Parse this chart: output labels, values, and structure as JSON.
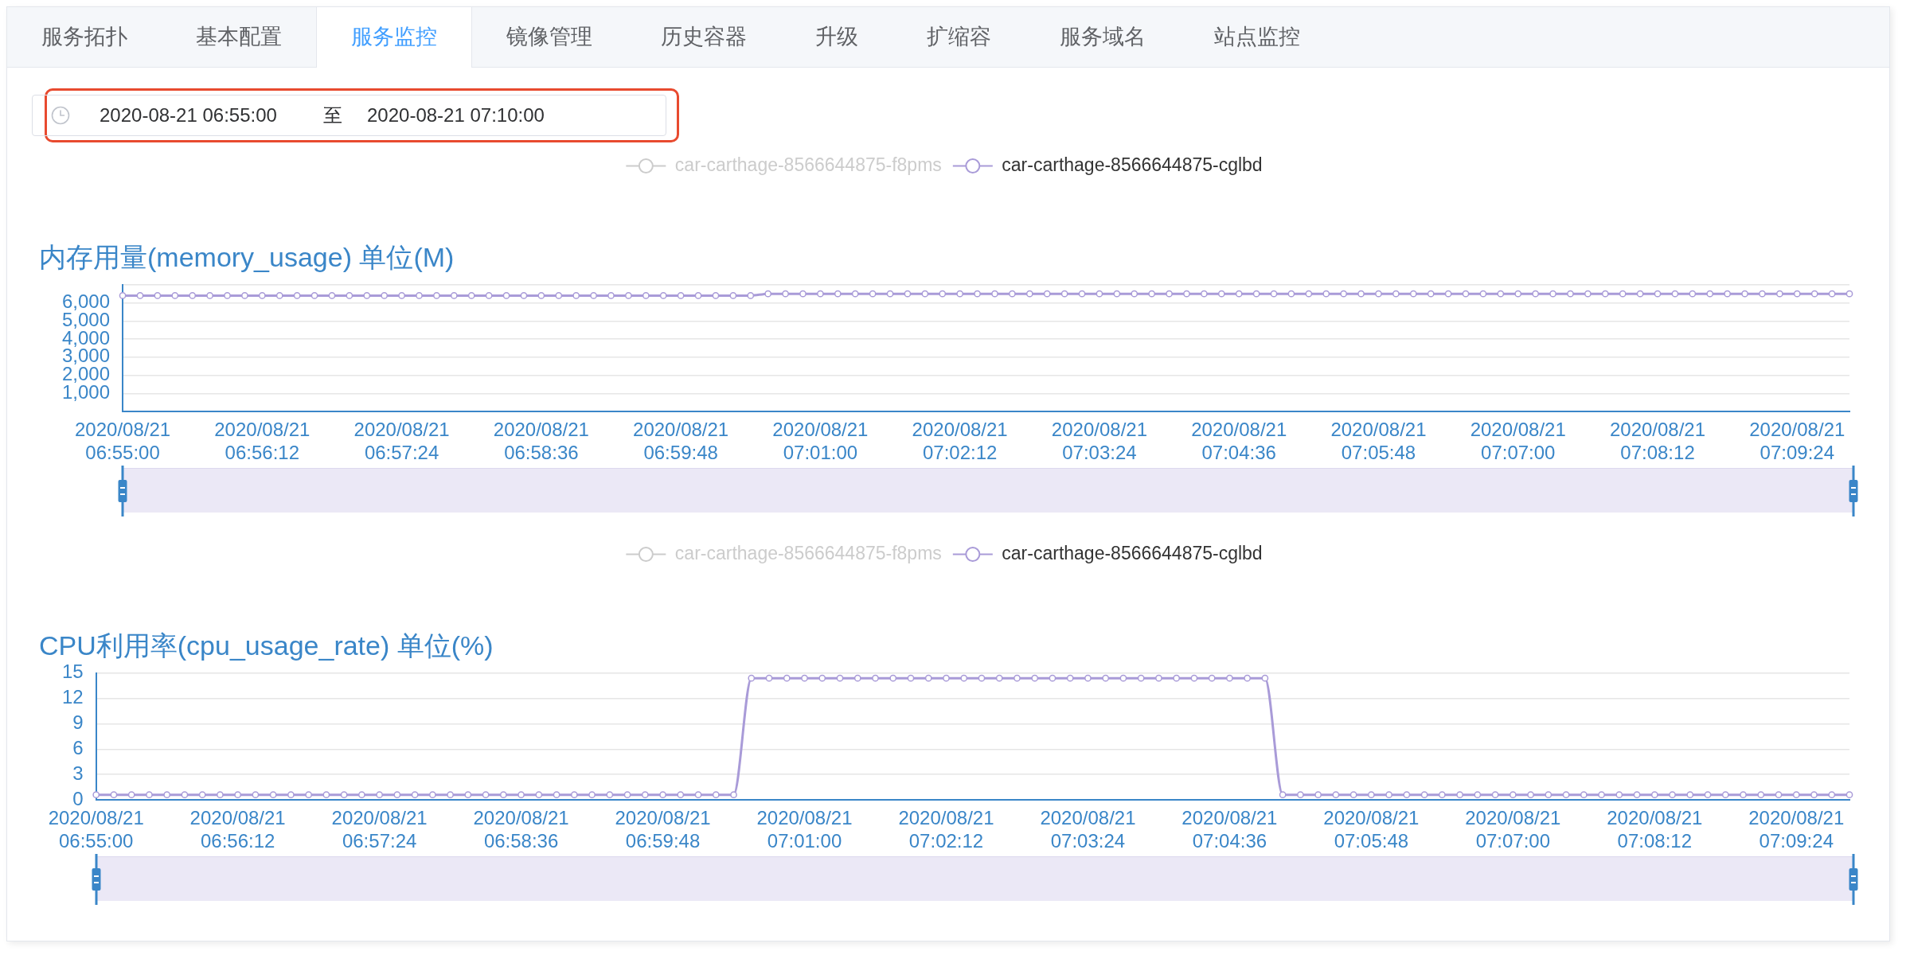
{
  "chart_data": [
    {
      "type": "other",
      "annotations": [
        "服务拓扑",
        "基本配置",
        "服务监控",
        "镜像管理",
        "历史容器",
        "升级",
        "扩缩容",
        "服务域名",
        "站点监控"
      ]
    },
    {
      "type": "other",
      "annotations": [
        "2020-08-21 06:55:00",
        "至",
        "2020-08-21 07:10:00"
      ]
    },
    {
      "type": "line",
      "title": "内存用量(memory_usage) 单位(M)",
      "categories": [
        "2020/08/21 06:55:00",
        null,
        null,
        null,
        null,
        null,
        null,
        null,
        "2020/08/21 06:56:12",
        null,
        null,
        null,
        null,
        null,
        null,
        null,
        "2020/08/21 06:57:24",
        null,
        null,
        null,
        null,
        null,
        null,
        null,
        "2020/08/21 06:58:36",
        null,
        null,
        null,
        null,
        null,
        null,
        null,
        "2020/08/21 06:59:48",
        null,
        null,
        null,
        null,
        null,
        null,
        null,
        "2020/08/21 07:01:00",
        null,
        null,
        null,
        null,
        null,
        null,
        null,
        "2020/08/21 07:02:12",
        null,
        null,
        null,
        null,
        null,
        null,
        null,
        "2020/08/21 07:03:24",
        null,
        null,
        null,
        null,
        null,
        null,
        null,
        "2020/08/21 07:04:36",
        null,
        null,
        null,
        null,
        null,
        null,
        null,
        "2020/08/21 07:05:48",
        null,
        null,
        null,
        null,
        null,
        null,
        null,
        "2020/08/21 07:07:00",
        null,
        null,
        null,
        null,
        null,
        null,
        null,
        "2020/08/21 07:08:12",
        null,
        null,
        null,
        null,
        null,
        null,
        null,
        "2020/08/21 07:09:24",
        null,
        null,
        null
      ],
      "series": [
        {
          "name": "car-carthage-8566644875-f8pms",
          "color": "#cccccc",
          "values": [
            null,
            null,
            null,
            null,
            null,
            null,
            null,
            null,
            null,
            null,
            null,
            null,
            null,
            null,
            null,
            null,
            null,
            null,
            null,
            null,
            null,
            null,
            null,
            null,
            null,
            null,
            null,
            null,
            null,
            null,
            null,
            null,
            null,
            null,
            null,
            null,
            null,
            null,
            null,
            null,
            null,
            null,
            null,
            null,
            null,
            null,
            null,
            null,
            null,
            null,
            null,
            null,
            null,
            null,
            null,
            null,
            null,
            null,
            null,
            null,
            null,
            null,
            null,
            null,
            null,
            null,
            null,
            null,
            null,
            null,
            null,
            null,
            null,
            null,
            null,
            null,
            null,
            null,
            null,
            null,
            null,
            null,
            null,
            null,
            null,
            null,
            null,
            null,
            null,
            null,
            null,
            null,
            null,
            null,
            null,
            null,
            null,
            null,
            null,
            null
          ]
        },
        {
          "name": "car-carthage-8566644875-cglbd",
          "color": "#a99bd8",
          "values": [
            6400,
            6400,
            6400,
            6400,
            6400,
            6400,
            6400,
            6400,
            6400,
            6400,
            6400,
            6400,
            6400,
            6400,
            6400,
            6400,
            6400,
            6400,
            6400,
            6400,
            6400,
            6400,
            6400,
            6400,
            6400,
            6400,
            6400,
            6400,
            6400,
            6400,
            6400,
            6400,
            6400,
            6400,
            6400,
            6400,
            6400,
            6500,
            6500,
            6500,
            6500,
            6500,
            6500,
            6500,
            6500,
            6500,
            6500,
            6500,
            6500,
            6500,
            6500,
            6500,
            6500,
            6500,
            6500,
            6500,
            6500,
            6500,
            6500,
            6500,
            6500,
            6500,
            6500,
            6500,
            6500,
            6500,
            6500,
            6500,
            6500,
            6500,
            6500,
            6500,
            6500,
            6500,
            6500,
            6500,
            6500,
            6500,
            6500,
            6500,
            6500,
            6500,
            6500,
            6500,
            6500,
            6500,
            6500,
            6500,
            6500,
            6500,
            6500,
            6500,
            6500,
            6500,
            6500,
            6500,
            6500,
            6500,
            6500,
            6500
          ]
        }
      ],
      "ylim": [
        0,
        7000
      ],
      "yticks": [
        {
          "value": 0,
          "label": null
        },
        {
          "value": 1000,
          "label": "1,000"
        },
        {
          "value": 2000,
          "label": "2,000"
        },
        {
          "value": 3000,
          "label": "3,000"
        },
        {
          "value": 4000,
          "label": "4,000"
        },
        {
          "value": 5000,
          "label": "5,000"
        },
        {
          "value": 6000,
          "label": "6,000"
        },
        {
          "value": 7000,
          "label": null
        }
      ],
      "grid": "y",
      "legend": "top",
      "marker": "circle"
    },
    {
      "type": "line",
      "title": "CPU利用率(cpu_usage_rate) 单位(%)",
      "categories": [
        "2020/08/21 06:55:00",
        null,
        null,
        null,
        null,
        null,
        null,
        null,
        "2020/08/21 06:56:12",
        null,
        null,
        null,
        null,
        null,
        null,
        null,
        "2020/08/21 06:57:24",
        null,
        null,
        null,
        null,
        null,
        null,
        null,
        "2020/08/21 06:58:36",
        null,
        null,
        null,
        null,
        null,
        null,
        null,
        "2020/08/21 06:59:48",
        null,
        null,
        null,
        null,
        null,
        null,
        null,
        "2020/08/21 07:01:00",
        null,
        null,
        null,
        null,
        null,
        null,
        null,
        "2020/08/21 07:02:12",
        null,
        null,
        null,
        null,
        null,
        null,
        null,
        "2020/08/21 07:03:24",
        null,
        null,
        null,
        null,
        null,
        null,
        null,
        "2020/08/21 07:04:36",
        null,
        null,
        null,
        null,
        null,
        null,
        null,
        "2020/08/21 07:05:48",
        null,
        null,
        null,
        null,
        null,
        null,
        null,
        "2020/08/21 07:07:00",
        null,
        null,
        null,
        null,
        null,
        null,
        null,
        "2020/08/21 07:08:12",
        null,
        null,
        null,
        null,
        null,
        null,
        null,
        "2020/08/21 07:09:24",
        null,
        null,
        null
      ],
      "series": [
        {
          "name": "car-carthage-8566644875-f8pms",
          "color": "#cccccc",
          "values": [
            null,
            null,
            null,
            null,
            null,
            null,
            null,
            null,
            null,
            null,
            null,
            null,
            null,
            null,
            null,
            null,
            null,
            null,
            null,
            null,
            null,
            null,
            null,
            null,
            null,
            null,
            null,
            null,
            null,
            null,
            null,
            null,
            null,
            null,
            null,
            null,
            null,
            null,
            null,
            null,
            null,
            null,
            null,
            null,
            null,
            null,
            null,
            null,
            null,
            null,
            null,
            null,
            null,
            null,
            null,
            null,
            null,
            null,
            null,
            null,
            null,
            null,
            null,
            null,
            null,
            null,
            null,
            null,
            null,
            null,
            null,
            null,
            null,
            null,
            null,
            null,
            null,
            null,
            null,
            null,
            null,
            null,
            null,
            null,
            null,
            null,
            null,
            null,
            null,
            null,
            null,
            null,
            null,
            null,
            null,
            null,
            null,
            null,
            null,
            null
          ]
        },
        {
          "name": "car-carthage-8566644875-cglbd",
          "color": "#a99bd8",
          "values": [
            0.6,
            0.6,
            0.6,
            0.6,
            0.6,
            0.6,
            0.6,
            0.6,
            0.6,
            0.6,
            0.6,
            0.6,
            0.6,
            0.6,
            0.6,
            0.6,
            0.6,
            0.6,
            0.6,
            0.6,
            0.6,
            0.6,
            0.6,
            0.6,
            0.6,
            0.6,
            0.6,
            0.6,
            0.6,
            0.6,
            0.6,
            0.6,
            0.6,
            0.6,
            0.6,
            0.6,
            0.6,
            14.4,
            14.4,
            14.4,
            14.4,
            14.4,
            14.4,
            14.4,
            14.4,
            14.4,
            14.4,
            14.4,
            14.4,
            14.4,
            14.4,
            14.4,
            14.4,
            14.4,
            14.4,
            14.4,
            14.4,
            14.4,
            14.4,
            14.4,
            14.4,
            14.4,
            14.4,
            14.4,
            14.4,
            14.4,
            14.4,
            0.6,
            0.6,
            0.6,
            0.6,
            0.6,
            0.6,
            0.6,
            0.6,
            0.6,
            0.6,
            0.6,
            0.6,
            0.6,
            0.6,
            0.6,
            0.6,
            0.6,
            0.6,
            0.6,
            0.6,
            0.6,
            0.6,
            0.6,
            0.6,
            0.6,
            0.6,
            0.6,
            0.6,
            0.6,
            0.6,
            0.6,
            0.6,
            0.6
          ]
        }
      ],
      "ylim": [
        0,
        15
      ],
      "yticks": [
        0,
        3,
        6,
        9,
        12,
        15
      ],
      "grid": "y",
      "legend": "top",
      "marker": "circle"
    }
  ]
}
